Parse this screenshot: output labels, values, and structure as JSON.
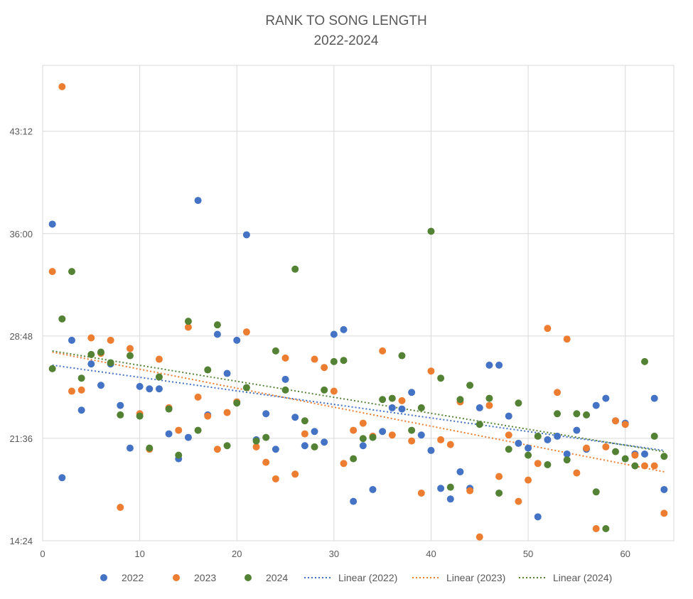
{
  "chart_data": {
    "type": "scatter",
    "title_line1": "RANK TO SONG LENGTH",
    "title_line2": "2022-2024",
    "xlabel": "",
    "ylabel": "",
    "xlim": [
      0,
      65
    ],
    "x_ticks": [
      0,
      10,
      20,
      30,
      40,
      50,
      60
    ],
    "y_ticks": [
      "14:24",
      "21:36",
      "28:48",
      "36:00",
      "43:12"
    ],
    "y_ticks_minutes": [
      864,
      1296,
      1728,
      2160,
      2592
    ],
    "ylim_minutes": [
      864,
      2870
    ],
    "grid": true,
    "legend_position": "bottom",
    "series": [
      {
        "name": "2022",
        "color": "#4472C4",
        "points": [
          [
            1,
            2200
          ],
          [
            2,
            1130
          ],
          [
            3,
            1710
          ],
          [
            4,
            1415
          ],
          [
            5,
            1610
          ],
          [
            6,
            1520
          ],
          [
            7,
            1610
          ],
          [
            8,
            1435
          ],
          [
            9,
            1255
          ],
          [
            10,
            1515
          ],
          [
            11,
            1505
          ],
          [
            12,
            1505
          ],
          [
            13,
            1315
          ],
          [
            14,
            1210
          ],
          [
            15,
            1300
          ],
          [
            16,
            2300
          ],
          [
            17,
            1395
          ],
          [
            18,
            1735
          ],
          [
            19,
            1570
          ],
          [
            20,
            1710
          ],
          [
            21,
            2155
          ],
          [
            22,
            1290
          ],
          [
            23,
            1400
          ],
          [
            24,
            1250
          ],
          [
            25,
            1545
          ],
          [
            26,
            1385
          ],
          [
            27,
            1265
          ],
          [
            28,
            1325
          ],
          [
            29,
            1280
          ],
          [
            30,
            1735
          ],
          [
            31,
            1755
          ],
          [
            32,
            1030
          ],
          [
            33,
            1265
          ],
          [
            34,
            1080
          ],
          [
            35,
            1325
          ],
          [
            36,
            1425
          ],
          [
            37,
            1420
          ],
          [
            38,
            1490
          ],
          [
            39,
            1310
          ],
          [
            40,
            1245
          ],
          [
            41,
            1085
          ],
          [
            42,
            1040
          ],
          [
            43,
            1155
          ],
          [
            44,
            1085
          ],
          [
            45,
            1425
          ],
          [
            46,
            1605
          ],
          [
            47,
            1605
          ],
          [
            48,
            1390
          ],
          [
            49,
            1275
          ],
          [
            50,
            1255
          ],
          [
            51,
            965
          ],
          [
            52,
            1290
          ],
          [
            53,
            1305
          ],
          [
            54,
            1230
          ],
          [
            55,
            1330
          ],
          [
            56,
            1250
          ],
          [
            57,
            1435
          ],
          [
            58,
            1465
          ],
          [
            59,
            1370
          ],
          [
            60,
            1360
          ],
          [
            61,
            1230
          ],
          [
            62,
            1230
          ],
          [
            63,
            1465
          ],
          [
            64,
            1080
          ]
        ]
      },
      {
        "name": "2023",
        "color": "#ED7D31",
        "points": [
          [
            1,
            2000
          ],
          [
            2,
            2780
          ],
          [
            3,
            1495
          ],
          [
            4,
            1500
          ],
          [
            5,
            1720
          ],
          [
            6,
            1655
          ],
          [
            7,
            1710
          ],
          [
            8,
            1005
          ],
          [
            9,
            1675
          ],
          [
            10,
            1400
          ],
          [
            11,
            1250
          ],
          [
            12,
            1630
          ],
          [
            13,
            1425
          ],
          [
            14,
            1330
          ],
          [
            15,
            1765
          ],
          [
            16,
            1470
          ],
          [
            17,
            1390
          ],
          [
            18,
            1250
          ],
          [
            19,
            1405
          ],
          [
            20,
            1450
          ],
          [
            21,
            1745
          ],
          [
            22,
            1260
          ],
          [
            23,
            1195
          ],
          [
            24,
            1125
          ],
          [
            25,
            1635
          ],
          [
            26,
            1145
          ],
          [
            27,
            1315
          ],
          [
            28,
            1630
          ],
          [
            29,
            1595
          ],
          [
            30,
            1495
          ],
          [
            31,
            1190
          ],
          [
            32,
            1330
          ],
          [
            33,
            1360
          ],
          [
            34,
            1305
          ],
          [
            35,
            1665
          ],
          [
            36,
            1310
          ],
          [
            37,
            1455
          ],
          [
            38,
            1285
          ],
          [
            39,
            1065
          ],
          [
            40,
            1580
          ],
          [
            41,
            1290
          ],
          [
            42,
            1270
          ],
          [
            43,
            1450
          ],
          [
            44,
            1075
          ],
          [
            45,
            880
          ],
          [
            46,
            1435
          ],
          [
            47,
            1135
          ],
          [
            48,
            1310
          ],
          [
            49,
            1030
          ],
          [
            50,
            1120
          ],
          [
            51,
            1190
          ],
          [
            52,
            1760
          ],
          [
            53,
            1490
          ],
          [
            54,
            1715
          ],
          [
            55,
            1150
          ],
          [
            56,
            1255
          ],
          [
            57,
            915
          ],
          [
            58,
            1260
          ],
          [
            59,
            1370
          ],
          [
            60,
            1355
          ],
          [
            61,
            1225
          ],
          [
            62,
            1180
          ],
          [
            63,
            1180
          ],
          [
            64,
            980
          ]
        ]
      },
      {
        "name": "2024",
        "color": "#548235",
        "points": [
          [
            1,
            1590
          ],
          [
            2,
            1800
          ],
          [
            3,
            2000
          ],
          [
            4,
            1550
          ],
          [
            5,
            1650
          ],
          [
            6,
            1660
          ],
          [
            7,
            1615
          ],
          [
            8,
            1395
          ],
          [
            9,
            1645
          ],
          [
            10,
            1390
          ],
          [
            11,
            1255
          ],
          [
            12,
            1555
          ],
          [
            13,
            1420
          ],
          [
            14,
            1225
          ],
          [
            15,
            1790
          ],
          [
            16,
            1330
          ],
          [
            17,
            1585
          ],
          [
            18,
            1775
          ],
          [
            19,
            1265
          ],
          [
            20,
            1445
          ],
          [
            21,
            1510
          ],
          [
            22,
            1285
          ],
          [
            23,
            1300
          ],
          [
            24,
            1665
          ],
          [
            25,
            1500
          ],
          [
            26,
            2010
          ],
          [
            27,
            1370
          ],
          [
            28,
            1260
          ],
          [
            29,
            1500
          ],
          [
            30,
            1620
          ],
          [
            31,
            1625
          ],
          [
            32,
            1210
          ],
          [
            33,
            1295
          ],
          [
            34,
            1300
          ],
          [
            35,
            1460
          ],
          [
            36,
            1465
          ],
          [
            37,
            1645
          ],
          [
            38,
            1330
          ],
          [
            39,
            1425
          ],
          [
            40,
            2170
          ],
          [
            41,
            1550
          ],
          [
            42,
            1090
          ],
          [
            43,
            1460
          ],
          [
            44,
            1520
          ],
          [
            45,
            1355
          ],
          [
            46,
            1465
          ],
          [
            47,
            1065
          ],
          [
            48,
            1250
          ],
          [
            49,
            1445
          ],
          [
            50,
            1225
          ],
          [
            51,
            1305
          ],
          [
            52,
            1185
          ],
          [
            53,
            1400
          ],
          [
            54,
            1205
          ],
          [
            55,
            1400
          ],
          [
            56,
            1395
          ],
          [
            57,
            1070
          ],
          [
            58,
            915
          ],
          [
            59,
            1240
          ],
          [
            60,
            1210
          ],
          [
            61,
            1180
          ],
          [
            62,
            1620
          ],
          [
            63,
            1305
          ],
          [
            64,
            1220
          ]
        ]
      }
    ],
    "trendlines": [
      {
        "name": "Linear (2022)",
        "color": "#4472C4",
        "x": [
          1,
          64
        ],
        "y": [
          1605,
          1245
        ]
      },
      {
        "name": "Linear (2023)",
        "color": "#ED7D31",
        "x": [
          1,
          64
        ],
        "y": [
          1660,
          1155
        ]
      },
      {
        "name": "Linear (2024)",
        "color": "#548235",
        "x": [
          1,
          64
        ],
        "y": [
          1665,
          1240
        ]
      }
    ]
  }
}
